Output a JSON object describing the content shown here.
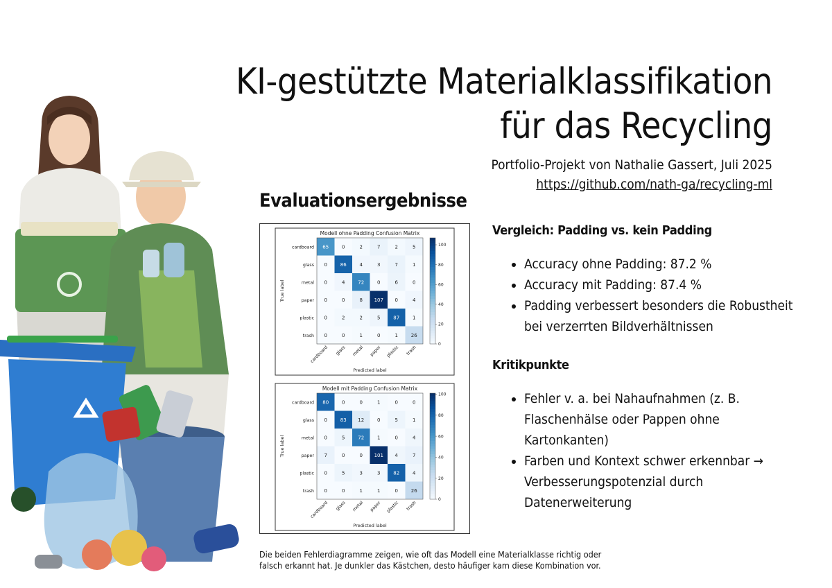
{
  "header": {
    "title_line1": "KI-gestützte Materialklassifikation",
    "title_line2": "für das Recycling",
    "subtitle": "Portfolio-Projekt von Nathalie Gassert, Juli 2025",
    "link": "https://github.com/nath-ga/recycling-ml"
  },
  "evaluation": {
    "heading": "Evaluationsergebnisse",
    "caption": "Die beiden Fehlerdiagramme zeigen, wie oft das Modell eine Materialklasse richtig oder falsch erkannt hat. Je dunkler das Kästchen, desto häufiger kam diese Kombination vor."
  },
  "comparison": {
    "heading": "Vergleich: Padding vs. kein Padding",
    "items": [
      "Accuracy ohne Padding: 87.2 %",
      "Accuracy mit Padding: 87.4 %",
      "Padding verbessert besonders die Robustheit bei verzerrten Bildverhältnissen"
    ]
  },
  "critique": {
    "heading": "Kritikpunkte",
    "items": [
      "Fehler v. a. bei Nahaufnahmen (z. B. Flaschenhälse oder Pappen ohne Kartonkanten)",
      "Farben und Kontext schwer erkennbar → Verbesserungspotenzial durch Datenerweiterung"
    ]
  },
  "chart_data": [
    {
      "type": "heatmap",
      "title": "Modell ohne Padding Confusion Matrix",
      "xlabel": "Predicted label",
      "ylabel": "True label",
      "categories": [
        "cardboard",
        "glass",
        "metal",
        "paper",
        "plastic",
        "trash"
      ],
      "values": [
        [
          65,
          0,
          2,
          7,
          2,
          5
        ],
        [
          0,
          86,
          4,
          3,
          7,
          1
        ],
        [
          0,
          4,
          72,
          0,
          6,
          0
        ],
        [
          0,
          0,
          8,
          107,
          0,
          4
        ],
        [
          0,
          2,
          2,
          5,
          87,
          1
        ],
        [
          0,
          0,
          1,
          0,
          1,
          26
        ]
      ],
      "colorbar_ticks": [
        0,
        20,
        40,
        60,
        80,
        100
      ],
      "vmax": 107,
      "colormap": "Blues"
    },
    {
      "type": "heatmap",
      "title": "Modell mit Padding Confusion Matrix",
      "xlabel": "Predicted label",
      "ylabel": "True label",
      "categories": [
        "cardboard",
        "glass",
        "metal",
        "paper",
        "plastic",
        "trash"
      ],
      "values": [
        [
          80,
          0,
          0,
          1,
          0,
          0
        ],
        [
          0,
          83,
          12,
          0,
          5,
          1
        ],
        [
          0,
          5,
          72,
          1,
          0,
          4
        ],
        [
          7,
          0,
          0,
          101,
          4,
          7
        ],
        [
          0,
          5,
          3,
          3,
          82,
          4
        ],
        [
          0,
          0,
          1,
          1,
          0,
          26
        ]
      ],
      "colorbar_ticks": [
        0,
        20,
        40,
        60,
        80,
        100
      ],
      "vmax": 101,
      "colormap": "Blues"
    }
  ]
}
